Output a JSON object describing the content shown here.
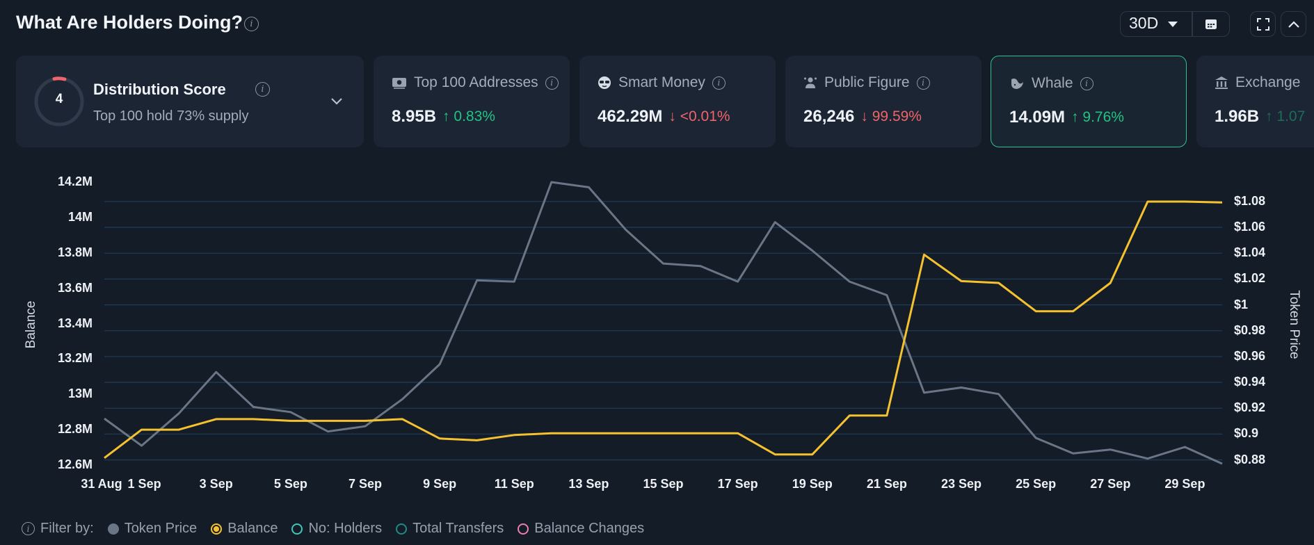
{
  "header": {
    "title": "What Are Holders Doing?",
    "period": "30D"
  },
  "distribution": {
    "score": "4",
    "title": "Distribution Score",
    "subtitle": "Top 100 hold 73% supply"
  },
  "cards": [
    {
      "label": "Top 100 Addresses",
      "value": "8.95B",
      "change": "0.83%",
      "direction": "up",
      "icon": "money-icon"
    },
    {
      "label": "Smart Money",
      "value": "462.29M",
      "change": "<0.01%",
      "direction": "down",
      "icon": "sunglasses-icon"
    },
    {
      "label": "Public Figure",
      "value": "26,246",
      "change": "99.59%",
      "direction": "down",
      "icon": "person-icon"
    },
    {
      "label": "Whale",
      "value": "14.09M",
      "change": "9.76%",
      "direction": "up",
      "icon": "whale-icon",
      "selected": true
    },
    {
      "label": "Exchange",
      "value": "1.96B",
      "change": "1.07",
      "direction": "up",
      "icon": "bank-icon"
    }
  ],
  "legend": {
    "filter_label": "Filter by:",
    "items": [
      {
        "label": "Token Price",
        "color": "#6a7686",
        "style": "filled"
      },
      {
        "label": "Balance",
        "color": "#f5c12e",
        "style": "selected"
      },
      {
        "label": "No: Holders",
        "color": "#3fc6b7",
        "style": "outline"
      },
      {
        "label": "Total Transfers",
        "color": "#1f8a84",
        "style": "outline"
      },
      {
        "label": "Balance Changes",
        "color": "#e77fb0",
        "style": "outline"
      }
    ]
  },
  "chart_data": {
    "type": "line",
    "ylabel": "Balance",
    "y2label": "Token Price",
    "x": [
      "31 Aug",
      "1 Sep",
      "2 Sep",
      "3 Sep",
      "4 Sep",
      "5 Sep",
      "6 Sep",
      "7 Sep",
      "8 Sep",
      "9 Sep",
      "10 Sep",
      "11 Sep",
      "12 Sep",
      "13 Sep",
      "14 Sep",
      "15 Sep",
      "16 Sep",
      "17 Sep",
      "18 Sep",
      "19 Sep",
      "20 Sep",
      "21 Sep",
      "22 Sep",
      "23 Sep",
      "24 Sep",
      "25 Sep",
      "26 Sep",
      "27 Sep",
      "28 Sep",
      "29 Sep",
      "30 Sep"
    ],
    "xticks": [
      "31 Aug",
      "1 Sep",
      "3 Sep",
      "5 Sep",
      "7 Sep",
      "9 Sep",
      "11 Sep",
      "13 Sep",
      "15 Sep",
      "17 Sep",
      "19 Sep",
      "21 Sep",
      "23 Sep",
      "25 Sep",
      "27 Sep",
      "29 Sep"
    ],
    "yticks_left": [
      "12.6M",
      "12.8M",
      "13M",
      "13.2M",
      "13.4M",
      "13.6M",
      "13.8M",
      "14M",
      "14.2M"
    ],
    "yticks_right": [
      "$0.88",
      "$0.9",
      "$0.92",
      "$0.94",
      "$0.96",
      "$0.98",
      "$1",
      "$1.02",
      "$1.04",
      "$1.06",
      "$1.08"
    ],
    "ylim_left": [
      12.6,
      14.2
    ],
    "ylim_right": [
      0.876,
      1.095
    ],
    "series": [
      {
        "name": "Token Price",
        "axis": "right",
        "color": "#6a7686",
        "values": [
          0.912,
          0.891,
          0.916,
          0.948,
          0.921,
          0.917,
          0.902,
          0.906,
          0.927,
          0.954,
          1.019,
          1.018,
          1.095,
          1.091,
          1.058,
          1.032,
          1.03,
          1.018,
          1.064,
          1.042,
          1.018,
          1.0075,
          0.932,
          0.936,
          0.931,
          0.897,
          0.885,
          0.888,
          0.881,
          0.89,
          0.877
        ]
      },
      {
        "name": "Balance",
        "axis": "left",
        "color": "#f5c12e",
        "values": [
          12.64,
          12.8,
          12.8,
          12.86,
          12.86,
          12.85,
          12.85,
          12.85,
          12.86,
          12.75,
          12.74,
          12.77,
          12.78,
          12.78,
          12.78,
          12.78,
          12.78,
          12.78,
          12.66,
          12.66,
          12.88,
          12.88,
          13.79,
          13.64,
          13.63,
          13.47,
          13.47,
          13.63,
          14.09,
          14.09,
          14.085
        ]
      }
    ]
  }
}
